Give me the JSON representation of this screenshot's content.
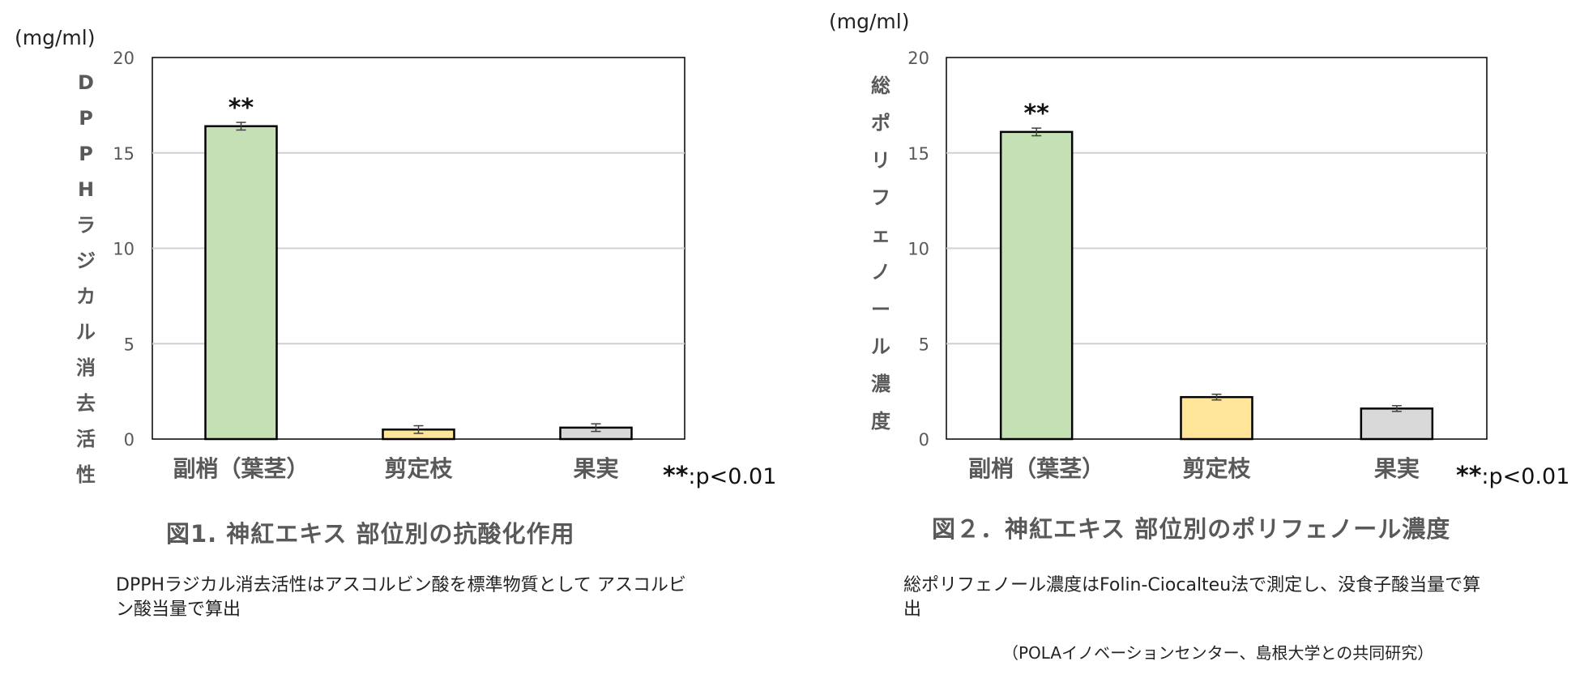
{
  "panels": [
    {
      "unit": "(mg/ml)",
      "ylabel_chars": [
        "D",
        "P",
        "P",
        "H",
        "ラ",
        "ジ",
        "カ",
        "ル",
        "消",
        "去",
        "活",
        "性"
      ],
      "significance": {
        "stars": "**",
        "text": ":p<0.01"
      },
      "figure_title": "図1. 神紅エキス 部位別の抗酸化作用",
      "note": "DPPHラジカル消去活性はアスコルビン酸を標準物質として アスコルビン酸当量で算出"
    },
    {
      "unit": "(mg/ml)",
      "ylabel_chars": [
        "総",
        "ポ",
        "リ",
        "フ",
        "ェ",
        "ノ",
        "ー",
        "ル",
        "濃",
        "度"
      ],
      "significance": {
        "stars": "**",
        "text": ":p<0.01"
      },
      "figure_title": "図２．神紅エキス 部位別のポリフェノール濃度",
      "note": "総ポリフェノール濃度はFolin-Ciocalteu法で測定し、没食子酸当量で算出",
      "credit": "（POLAイノベーションセンター、島根大学との共同研究）"
    }
  ],
  "chart_data": [
    {
      "type": "bar",
      "categories": [
        "副梢（葉茎）",
        "剪定枝",
        "果実"
      ],
      "values": [
        16.4,
        0.5,
        0.6
      ],
      "errors": [
        0.2,
        0.2,
        0.2
      ],
      "markers": [
        "**",
        "",
        ""
      ],
      "colors": [
        "#c5e0b4",
        "#ffe699",
        "#d9d9d9"
      ],
      "ylim": [
        0,
        20
      ],
      "yticks": [
        "0",
        "5",
        "10",
        "15",
        "20"
      ],
      "grid": true,
      "title": "",
      "ylabel": "DPPHラジカル消去活性",
      "unit": "(mg/ml)"
    },
    {
      "type": "bar",
      "categories": [
        "副梢（葉茎）",
        "剪定枝",
        "果実"
      ],
      "values": [
        16.1,
        2.2,
        1.6
      ],
      "errors": [
        0.2,
        0.15,
        0.15
      ],
      "markers": [
        "**",
        "",
        ""
      ],
      "colors": [
        "#c5e0b4",
        "#ffe699",
        "#d9d9d9"
      ],
      "ylim": [
        0,
        20
      ],
      "yticks": [
        "0",
        "5",
        "10",
        "15",
        "20"
      ],
      "grid": true,
      "title": "",
      "ylabel": "総ポリフェノール濃度",
      "unit": "(mg/ml)"
    }
  ]
}
